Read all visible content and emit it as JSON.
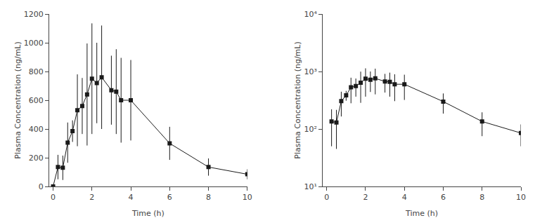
{
  "chart_data": [
    {
      "type": "line",
      "xlabel": "Time (h)",
      "ylabel": "Plasma Concentration (ng/mL)",
      "x": [
        0,
        0.25,
        0.5,
        0.75,
        1.0,
        1.25,
        1.5,
        1.75,
        2.0,
        2.25,
        2.5,
        3.0,
        3.25,
        3.5,
        4.0,
        6.0,
        8.0,
        10.0
      ],
      "series": [
        {
          "values": [
            0,
            135,
            130,
            305,
            385,
            530,
            560,
            640,
            750,
            720,
            760,
            670,
            660,
            600,
            600,
            300,
            135,
            85
          ],
          "err_upper": [
            0,
            85,
            85,
            140,
            75,
            250,
            195,
            355,
            385,
            280,
            360,
            240,
            295,
            295,
            280,
            115,
            60,
            35
          ],
          "err_lower": [
            0,
            85,
            85,
            140,
            75,
            250,
            195,
            355,
            385,
            280,
            360,
            240,
            295,
            295,
            280,
            115,
            60,
            35
          ],
          "color": "#1a1a1a",
          "marker": "square",
          "line_style": "solid"
        }
      ],
      "xlim": [
        -0.2,
        10
      ],
      "xticks": [
        0,
        2,
        4,
        6,
        8,
        10
      ],
      "ylim": [
        0,
        1200
      ],
      "yticks": [
        0,
        200,
        400,
        600,
        800,
        1000,
        1200
      ],
      "grid": false
    },
    {
      "type": "line",
      "xlabel": "Time (h)",
      "ylabel": "Plasma Concentration (ng/mL)",
      "x": [
        0.25,
        0.5,
        0.75,
        1.0,
        1.25,
        1.5,
        1.75,
        2.0,
        2.25,
        2.5,
        3.0,
        3.25,
        3.5,
        4.0,
        6.0,
        8.0,
        10.0
      ],
      "series": [
        {
          "values": [
            135,
            130,
            305,
            385,
            530,
            560,
            640,
            750,
            720,
            760,
            670,
            660,
            600,
            600,
            300,
            135,
            85
          ],
          "err_upper": [
            85,
            85,
            140,
            75,
            250,
            195,
            355,
            385,
            280,
            360,
            240,
            295,
            295,
            280,
            115,
            60,
            35
          ],
          "err_lower": [
            85,
            85,
            140,
            75,
            250,
            195,
            355,
            385,
            280,
            360,
            240,
            295,
            295,
            280,
            115,
            60,
            35
          ],
          "color": "#1a1a1a",
          "marker": "square",
          "line_style": "solid"
        }
      ],
      "xlim": [
        -0.2,
        10
      ],
      "xticks": [
        0,
        2,
        4,
        6,
        8,
        10
      ],
      "ylim": [
        10,
        10000
      ],
      "yticks": [
        {
          "value": 10,
          "label": "10¹"
        },
        {
          "value": 100,
          "label": "10²"
        },
        {
          "value": 1000,
          "label": "10³"
        },
        {
          "value": 10000,
          "label": "10⁴"
        }
      ],
      "log": "y",
      "grid": false
    }
  ]
}
